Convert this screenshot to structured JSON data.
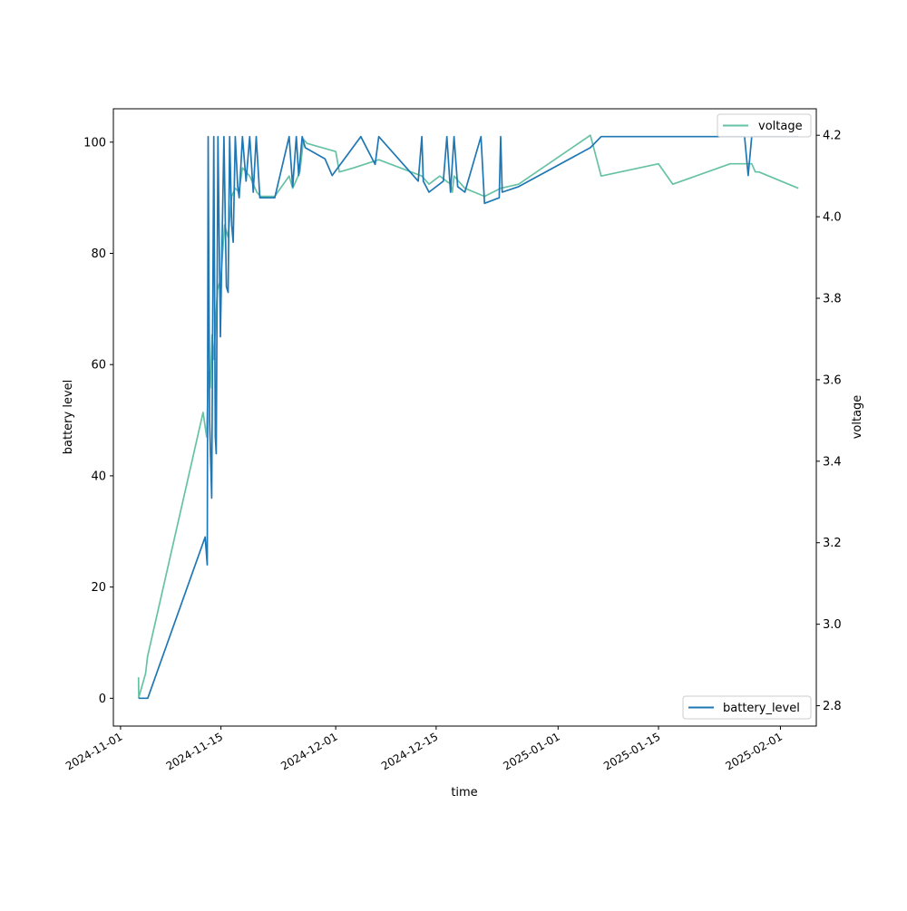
{
  "chart_data": {
    "type": "line",
    "xlabel": "time",
    "ylabel_left": "battery level",
    "ylabel_right": "voltage",
    "x_range": [
      "2024-10-31",
      "2025-02-06"
    ],
    "y_left_range": [
      -5,
      106
    ],
    "y_right_range": [
      2.75,
      4.265
    ],
    "x_ticks": [
      "2024-11-01",
      "2024-11-15",
      "2024-12-01",
      "2024-12-15",
      "2025-01-01",
      "2025-01-15",
      "2025-02-01"
    ],
    "y_left_ticks": [
      "0",
      "20",
      "40",
      "60",
      "80",
      "100"
    ],
    "y_right_ticks": [
      "2.8",
      "3.0",
      "3.2",
      "3.4",
      "3.6",
      "3.8",
      "4.0",
      "4.2"
    ],
    "grid": false,
    "colors": {
      "battery_level": "#1f77b4",
      "voltage": "#66c2a5"
    },
    "series": [
      {
        "name": "battery_level",
        "axis": "left",
        "legend_position": "lower-right",
        "points": [
          [
            "2024-11-03T12:00",
            0
          ],
          [
            "2024-11-04T19:00",
            0
          ],
          [
            "2024-11-12T19:00",
            29
          ],
          [
            "2024-11-13T02:00",
            24
          ],
          [
            "2024-11-13T05:00",
            101
          ],
          [
            "2024-11-13T10:00",
            50
          ],
          [
            "2024-11-13T17:00",
            36
          ],
          [
            "2024-11-14T00:00",
            101
          ],
          [
            "2024-11-14T05:00",
            47
          ],
          [
            "2024-11-14T08:00",
            44
          ],
          [
            "2024-11-14T14:00",
            101
          ],
          [
            "2024-11-14T22:00",
            65
          ],
          [
            "2024-11-15T10:00",
            101
          ],
          [
            "2024-11-15T18:00",
            74
          ],
          [
            "2024-11-16T00:00",
            73
          ],
          [
            "2024-11-16T05:00",
            101
          ],
          [
            "2024-11-16T12:00",
            85
          ],
          [
            "2024-11-16T17:00",
            82
          ],
          [
            "2024-11-17T00:00",
            101
          ],
          [
            "2024-11-17T08:00",
            92
          ],
          [
            "2024-11-17T13:00",
            90
          ],
          [
            "2024-11-18T00:00",
            101
          ],
          [
            "2024-11-18T12:00",
            93
          ],
          [
            "2024-11-19T00:00",
            101
          ],
          [
            "2024-11-19T12:00",
            91
          ],
          [
            "2024-11-19T22:00",
            101
          ],
          [
            "2024-11-20T10:00",
            90
          ],
          [
            "2024-11-22T12:00",
            90
          ],
          [
            "2024-11-24T12:00",
            101
          ],
          [
            "2024-11-25T00:00",
            92
          ],
          [
            "2024-11-25T12:00",
            101
          ],
          [
            "2024-11-25T20:00",
            94
          ],
          [
            "2024-11-26T08:00",
            101
          ],
          [
            "2024-11-26T18:00",
            99
          ],
          [
            "2024-11-29T12:00",
            97
          ],
          [
            "2024-11-30T12:00",
            94
          ],
          [
            "2024-12-04T12:00",
            101
          ],
          [
            "2024-12-06T12:00",
            96
          ],
          [
            "2024-12-07T00:00",
            101
          ],
          [
            "2024-12-12T12:00",
            93
          ],
          [
            "2024-12-13T00:00",
            101
          ],
          [
            "2024-12-13T05:00",
            93
          ],
          [
            "2024-12-14T00:00",
            91
          ],
          [
            "2024-12-16T00:00",
            93
          ],
          [
            "2024-12-16T12:00",
            101
          ],
          [
            "2024-12-17T00:00",
            91
          ],
          [
            "2024-12-17T12:00",
            101
          ],
          [
            "2024-12-18T00:00",
            92
          ],
          [
            "2024-12-19T00:00",
            91
          ],
          [
            "2024-12-21T06:00",
            101
          ],
          [
            "2024-12-21T18:00",
            89
          ],
          [
            "2024-12-23T19:00",
            90
          ],
          [
            "2024-12-24T00:00",
            101
          ],
          [
            "2024-12-24T05:00",
            91
          ],
          [
            "2024-12-26T12:00",
            92
          ],
          [
            "2025-01-05T12:00",
            99
          ],
          [
            "2025-01-07T00:00",
            101
          ],
          [
            "2025-01-27T00:00",
            101
          ],
          [
            "2025-01-27T12:00",
            94
          ],
          [
            "2025-01-28T00:00",
            101
          ],
          [
            "2025-02-03T12:00",
            101
          ]
        ]
      },
      {
        "name": "voltage",
        "axis": "right",
        "legend_position": "upper-right",
        "points": [
          [
            "2024-11-03T12:00",
            2.87
          ],
          [
            "2024-11-03T13:00",
            2.82
          ],
          [
            "2024-11-04T12:00",
            2.88
          ],
          [
            "2024-11-04T18:00",
            2.92
          ],
          [
            "2024-11-12T12:00",
            3.52
          ],
          [
            "2024-11-13T00:00",
            3.46
          ],
          [
            "2024-11-13T06:00",
            3.62
          ],
          [
            "2024-11-13T12:00",
            3.58
          ],
          [
            "2024-11-13T18:00",
            3.71
          ],
          [
            "2024-11-14T00:00",
            3.65
          ],
          [
            "2024-11-14T12:00",
            3.82
          ],
          [
            "2024-11-15T00:00",
            3.85
          ],
          [
            "2024-11-15T12:00",
            3.98
          ],
          [
            "2024-11-16T00:00",
            3.95
          ],
          [
            "2024-11-16T12:00",
            4.05
          ],
          [
            "2024-11-17T00:00",
            4.07
          ],
          [
            "2024-11-17T12:00",
            4.06
          ],
          [
            "2024-11-18T00:00",
            4.12
          ],
          [
            "2024-11-19T00:00",
            4.1
          ],
          [
            "2024-11-20T00:00",
            4.06
          ],
          [
            "2024-11-20T12:00",
            4.05
          ],
          [
            "2024-11-22T12:00",
            4.05
          ],
          [
            "2024-11-24T12:00",
            4.1
          ],
          [
            "2024-11-25T00:00",
            4.07
          ],
          [
            "2024-11-26T00:00",
            4.11
          ],
          [
            "2024-11-26T12:00",
            4.19
          ],
          [
            "2024-11-27T00:00",
            4.18
          ],
          [
            "2024-12-01T00:00",
            4.16
          ],
          [
            "2024-12-01T12:00",
            4.11
          ],
          [
            "2024-12-03T12:00",
            4.12
          ],
          [
            "2024-12-07T00:00",
            4.14
          ],
          [
            "2024-12-13T00:00",
            4.1
          ],
          [
            "2024-12-14T00:00",
            4.08
          ],
          [
            "2024-12-15T12:00",
            4.1
          ],
          [
            "2024-12-17T00:00",
            4.08
          ],
          [
            "2024-12-17T06:00",
            4.06
          ],
          [
            "2024-12-17T12:00",
            4.1
          ],
          [
            "2024-12-19T00:00",
            4.07
          ],
          [
            "2024-12-21T18:00",
            4.05
          ],
          [
            "2024-12-24T00:00",
            4.07
          ],
          [
            "2024-12-26T12:00",
            4.08
          ],
          [
            "2025-01-05T12:00",
            4.2
          ],
          [
            "2025-01-07T00:00",
            4.1
          ],
          [
            "2025-01-15T00:00",
            4.13
          ],
          [
            "2025-01-17T00:00",
            4.08
          ],
          [
            "2025-01-25T00:00",
            4.13
          ],
          [
            "2025-01-28T00:00",
            4.13
          ],
          [
            "2025-01-28T12:00",
            4.11
          ],
          [
            "2025-01-29T00:00",
            4.11
          ],
          [
            "2025-02-03T12:00",
            4.07
          ]
        ]
      }
    ]
  }
}
